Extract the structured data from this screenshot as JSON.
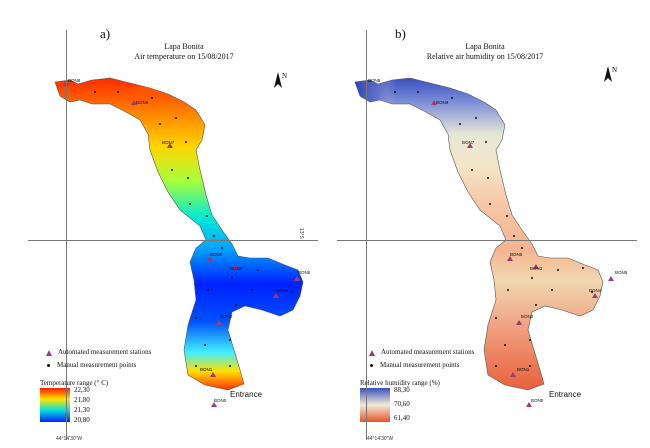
{
  "panels": [
    {
      "label": "a)",
      "title": "Lapa Bonita",
      "subtitle": "Air temperature on 15/08/2017",
      "legend": {
        "automated": "Automated measurement stations",
        "manual": "Manual measurement points"
      },
      "range_title": "Temperature range (° C)",
      "range_values": [
        "22,30",
        "21,80",
        "21,30",
        "20,80"
      ],
      "ramp_colors": [
        "#ff1a00",
        "#ffe600",
        "#00e0e0",
        "#0020ff"
      ],
      "stations": [
        "BON8",
        "BON9",
        "BON7",
        "BON6",
        "BON3",
        "BON5",
        "BON4",
        "BON2",
        "BON1",
        "BON0"
      ],
      "entrance": "Entrance",
      "coord_lon": "44°14'30\"W",
      "coord_lat": "13°S"
    },
    {
      "label": "b)",
      "title": "Lapa Bonita",
      "subtitle": "Relative air humidity on 15/08/2017",
      "legend": {
        "automated": "Automated measurement stations",
        "manual": "Manual measurement points"
      },
      "range_title": "Relative humidity range (%)",
      "range_values": [
        "88,30",
        "70,60",
        "61,40"
      ],
      "ramp_colors": [
        "#3a4fc0",
        "#f2ecd8",
        "#e8512a"
      ],
      "stations": [
        "BON8",
        "BON9",
        "BON7",
        "BON6",
        "BON3",
        "BON5",
        "BON4",
        "BON2",
        "BON1",
        "BON0"
      ],
      "entrance": "Entrance",
      "coord_lon": "44°14'30\"W"
    }
  ],
  "colors": {
    "automated_marker": "#a23a72",
    "manual_marker": "#111111",
    "grid_line": "#777777"
  }
}
